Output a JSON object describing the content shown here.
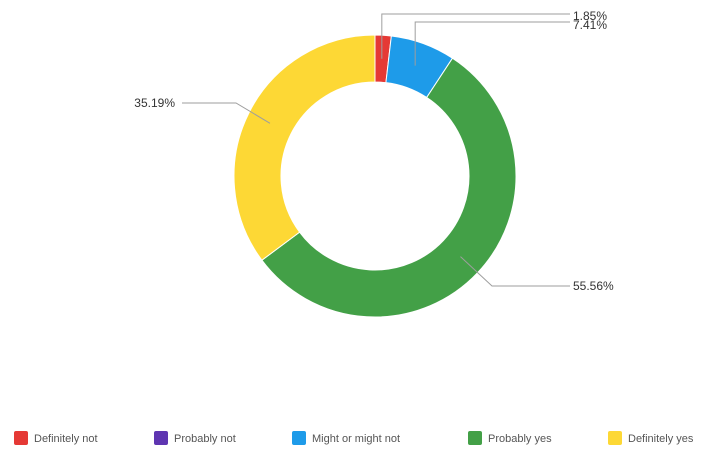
{
  "chart_data": {
    "type": "pie",
    "donut": true,
    "categories": [
      "Definitely not",
      "Probably not",
      "Might or might not",
      "Probably yes",
      "Definitely yes"
    ],
    "values": [
      1.85,
      0,
      7.41,
      55.56,
      35.19
    ],
    "value_labels": [
      "1.85%",
      "",
      "7.41%",
      "55.56%",
      "35.19%"
    ],
    "colors": [
      "#e53935",
      "#5e35b1",
      "#1e9be9",
      "#43a047",
      "#fdd835"
    ],
    "legend_position": "bottom",
    "title": ""
  }
}
